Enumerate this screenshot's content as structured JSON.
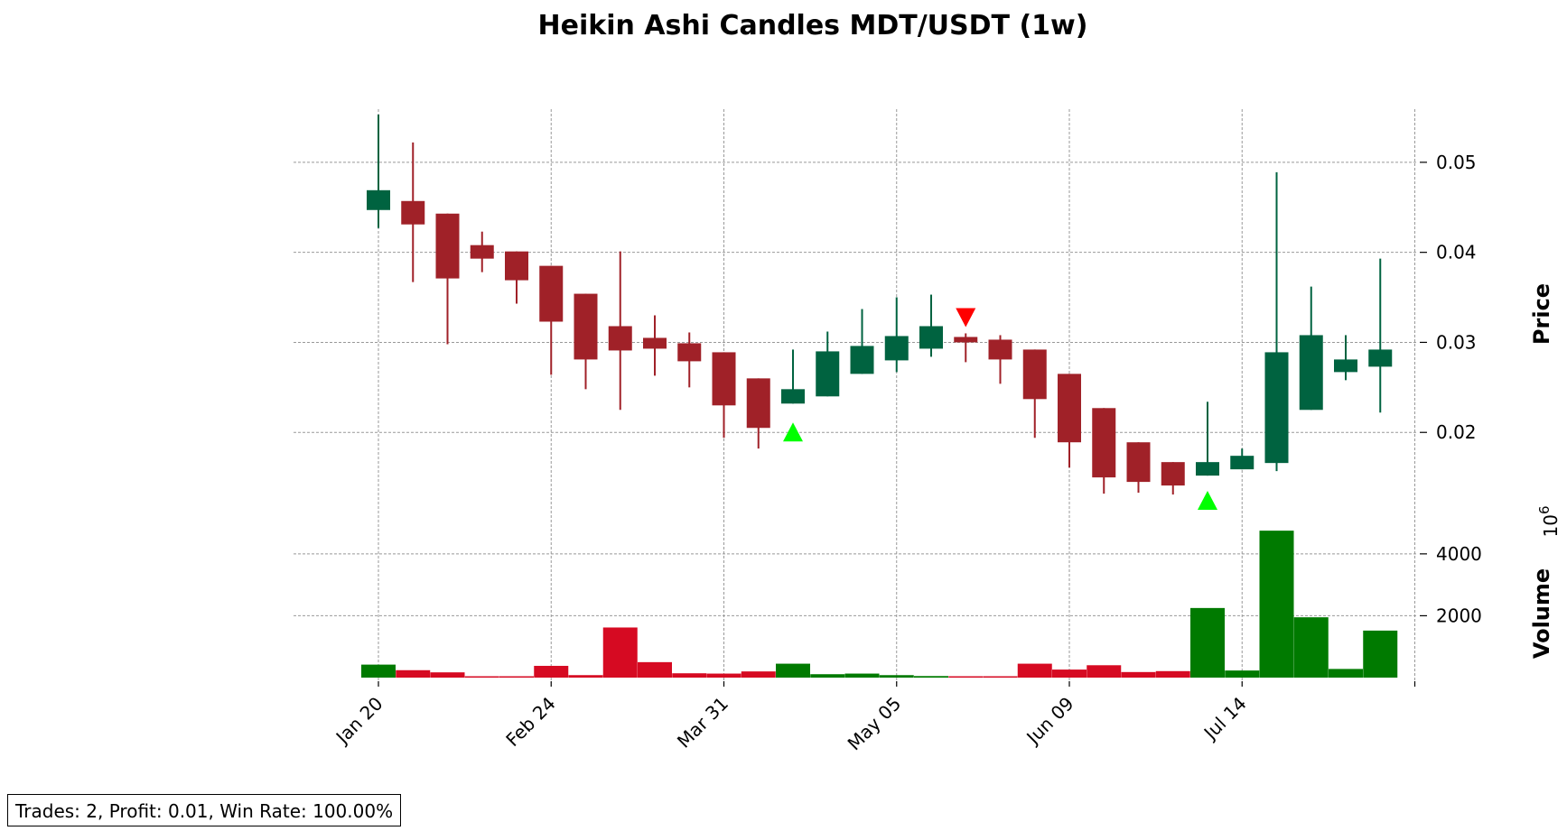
{
  "chart_data": {
    "type": "candlestick",
    "title": "Heikin Ashi Candles MDT/USDT (1w)",
    "price_label": "Price",
    "volume_label": "Volume",
    "volume_exponent_base": "10",
    "volume_exponent_power": "6",
    "price_ylim": [
      0.0096,
      0.0557
    ],
    "volume_ylim": [
      0,
      4900
    ],
    "price_ticks": [
      "0.02",
      "0.03",
      "0.04",
      "0.05"
    ],
    "volume_ticks": [
      "2000",
      "4000"
    ],
    "x_tick_labels": [
      "Jan 20",
      "Feb 24",
      "Mar 31",
      "May 05",
      "Jun 09",
      "Jul 14"
    ],
    "grid": true,
    "colors": {
      "up_candle": "#006340",
      "down_candle": "#a02128",
      "up_volume": "#007a00",
      "down_volume": "#d60a22",
      "buy_marker": "#00ff00",
      "sell_marker": "#ff0000"
    },
    "candles": [
      {
        "week": "Jan 20",
        "open": 0.0447,
        "high": 0.0553,
        "low": 0.0427,
        "close": 0.0469,
        "volume": 420
      },
      {
        "week": "Jan 27",
        "open": 0.0457,
        "high": 0.0522,
        "low": 0.0367,
        "close": 0.0431,
        "volume": 240
      },
      {
        "week": "Feb 03",
        "open": 0.0443,
        "high": 0.0443,
        "low": 0.0298,
        "close": 0.0371,
        "volume": 170
      },
      {
        "week": "Feb 10",
        "open": 0.0408,
        "high": 0.0423,
        "low": 0.0378,
        "close": 0.0393,
        "volume": 20
      },
      {
        "week": "Feb 17",
        "open": 0.0401,
        "high": 0.0401,
        "low": 0.0343,
        "close": 0.0369,
        "volume": 10
      },
      {
        "week": "Feb 24",
        "open": 0.0385,
        "high": 0.0385,
        "low": 0.0264,
        "close": 0.0323,
        "volume": 380
      },
      {
        "week": "Mar 03",
        "open": 0.0354,
        "high": 0.0354,
        "low": 0.0248,
        "close": 0.0281,
        "volume": 80
      },
      {
        "week": "Mar 10",
        "open": 0.0318,
        "high": 0.0401,
        "low": 0.0225,
        "close": 0.0291,
        "volume": 1620
      },
      {
        "week": "Mar 17",
        "open": 0.0305,
        "high": 0.033,
        "low": 0.0263,
        "close": 0.0293,
        "volume": 500
      },
      {
        "week": "Mar 24",
        "open": 0.0299,
        "high": 0.0311,
        "low": 0.025,
        "close": 0.0279,
        "volume": 140
      },
      {
        "week": "Mar 31",
        "open": 0.0289,
        "high": 0.0289,
        "low": 0.0194,
        "close": 0.023,
        "volume": 130
      },
      {
        "week": "Apr 07",
        "open": 0.026,
        "high": 0.026,
        "low": 0.0182,
        "close": 0.0205,
        "volume": 200
      },
      {
        "week": "Apr 14",
        "open": 0.0232,
        "high": 0.0292,
        "low": 0.0232,
        "close": 0.0248,
        "volume": 450
      },
      {
        "week": "Apr 21",
        "open": 0.024,
        "high": 0.0312,
        "low": 0.024,
        "close": 0.029,
        "volume": 110
      },
      {
        "week": "Apr 28",
        "open": 0.0265,
        "high": 0.0337,
        "low": 0.0265,
        "close": 0.0296,
        "volume": 130
      },
      {
        "week": "May 05",
        "open": 0.028,
        "high": 0.035,
        "low": 0.0267,
        "close": 0.0307,
        "volume": 80
      },
      {
        "week": "May 12",
        "open": 0.0293,
        "high": 0.0353,
        "low": 0.0284,
        "close": 0.0318,
        "volume": 50
      },
      {
        "week": "May 19",
        "open": 0.0306,
        "high": 0.031,
        "low": 0.0278,
        "close": 0.03,
        "volume": 30
      },
      {
        "week": "May 26",
        "open": 0.0303,
        "high": 0.0308,
        "low": 0.0254,
        "close": 0.0281,
        "volume": 40
      },
      {
        "week": "Jun 02",
        "open": 0.0292,
        "high": 0.0292,
        "low": 0.0194,
        "close": 0.0237,
        "volume": 450
      },
      {
        "week": "Jun 09",
        "open": 0.0265,
        "high": 0.0265,
        "low": 0.0161,
        "close": 0.0189,
        "volume": 260
      },
      {
        "week": "Jun 16",
        "open": 0.0227,
        "high": 0.0227,
        "low": 0.0132,
        "close": 0.015,
        "volume": 400
      },
      {
        "week": "Jun 23",
        "open": 0.0189,
        "high": 0.0189,
        "low": 0.0133,
        "close": 0.0145,
        "volume": 180
      },
      {
        "week": "Jun 30",
        "open": 0.0167,
        "high": 0.0167,
        "low": 0.0131,
        "close": 0.0141,
        "volume": 210
      },
      {
        "week": "Jul 07",
        "open": 0.0152,
        "high": 0.0234,
        "low": 0.0152,
        "close": 0.0167,
        "volume": 2250
      },
      {
        "week": "Jul 14",
        "open": 0.0159,
        "high": 0.0182,
        "low": 0.0159,
        "close": 0.0174,
        "volume": 230
      },
      {
        "week": "Jul 21",
        "open": 0.0166,
        "high": 0.0489,
        "low": 0.0157,
        "close": 0.0289,
        "volume": 4750
      },
      {
        "week": "Jul 28",
        "open": 0.0225,
        "high": 0.0362,
        "low": 0.0225,
        "close": 0.0308,
        "volume": 1950
      },
      {
        "week": "Aug 04",
        "open": 0.0267,
        "high": 0.0308,
        "low": 0.0258,
        "close": 0.0281,
        "volume": 280
      },
      {
        "week": "Aug 11",
        "open": 0.0273,
        "high": 0.0393,
        "low": 0.0222,
        "close": 0.0292,
        "volume": 1520
      }
    ],
    "signals": [
      {
        "type": "buy",
        "week": "Apr 14",
        "price": 0.02
      },
      {
        "type": "sell",
        "week": "May 19",
        "price": 0.0328
      },
      {
        "type": "buy",
        "week": "Jul 07",
        "price": 0.0124
      }
    ]
  },
  "stats_text": "Trades: 2, Profit: 0.01, Win Rate: 100.00%"
}
